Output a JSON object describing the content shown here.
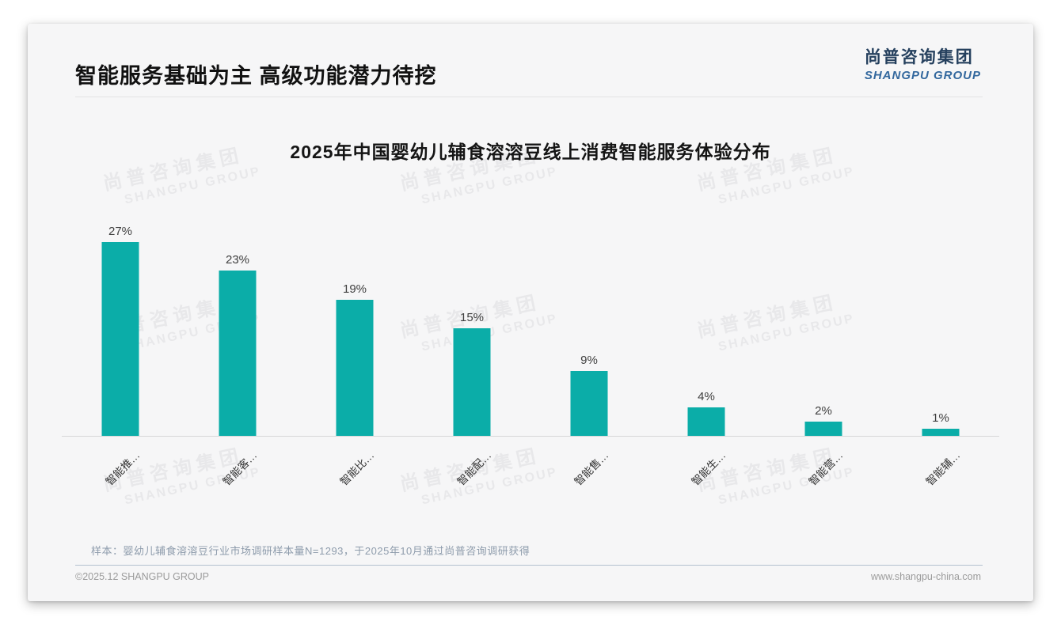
{
  "page": {
    "title": "智能服务基础为主 高级功能潜力待挖",
    "logo": {
      "cn": "尚普咨询集团",
      "en": "SHANGPU GROUP"
    },
    "watermark": {
      "cn": "尚普咨询集团",
      "en": "SHANGPU GROUP"
    },
    "footnote": "样本：婴幼儿辅食溶溶豆行业市场调研样本量N=1293，于2025年10月通过尚普咨询调研获得",
    "footer_left": "©2025.12 SHANGPU GROUP",
    "footer_right": "www.shangpu-china.com"
  },
  "chart_data": {
    "type": "bar",
    "title": "2025年中国婴幼儿辅食溶溶豆线上消费智能服务体验分布",
    "categories": [
      "智能推…",
      "智能客…",
      "智能比…",
      "智能配…",
      "智能售…",
      "智能生…",
      "智能营…",
      "智能辅…"
    ],
    "values": [
      27,
      23,
      19,
      15,
      9,
      4,
      2,
      1
    ],
    "data_labels": [
      "27%",
      "23%",
      "19%",
      "15%",
      "9%",
      "4%",
      "2%",
      "1%"
    ],
    "unit": "%",
    "ylim": [
      0,
      30
    ],
    "bar_color": "#0bada8",
    "value_label_color": "#3f3f3f",
    "axis_line_color": "#d8d8d9",
    "grid": false,
    "legend": false
  }
}
